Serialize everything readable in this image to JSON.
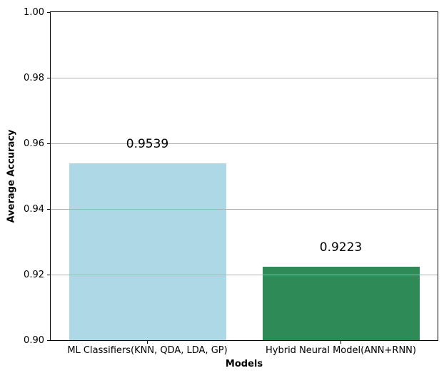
{
  "chart_data": {
    "type": "bar",
    "title": "",
    "xlabel": "Models",
    "ylabel": "Average Accuracy",
    "categories": [
      "ML Classifiers(KNN, QDA, LDA, GP)",
      "Hybrid Neural Model(ANN+RNN)"
    ],
    "values": [
      0.9539,
      0.9223
    ],
    "value_labels": [
      "0.9539",
      "0.9223"
    ],
    "bar_colors": [
      "#ADD8E6",
      "#2E8B57"
    ],
    "ylim": [
      0.9,
      1.0
    ],
    "yticks": [
      "0.90",
      "0.92",
      "0.94",
      "0.96",
      "0.98",
      "1.00"
    ],
    "grid": "horizontal",
    "grid_color": "#b0b0b0",
    "axis_color": "#000000",
    "background_color": "#ffffff",
    "bar_width_fraction": 0.81,
    "legend": "none"
  }
}
